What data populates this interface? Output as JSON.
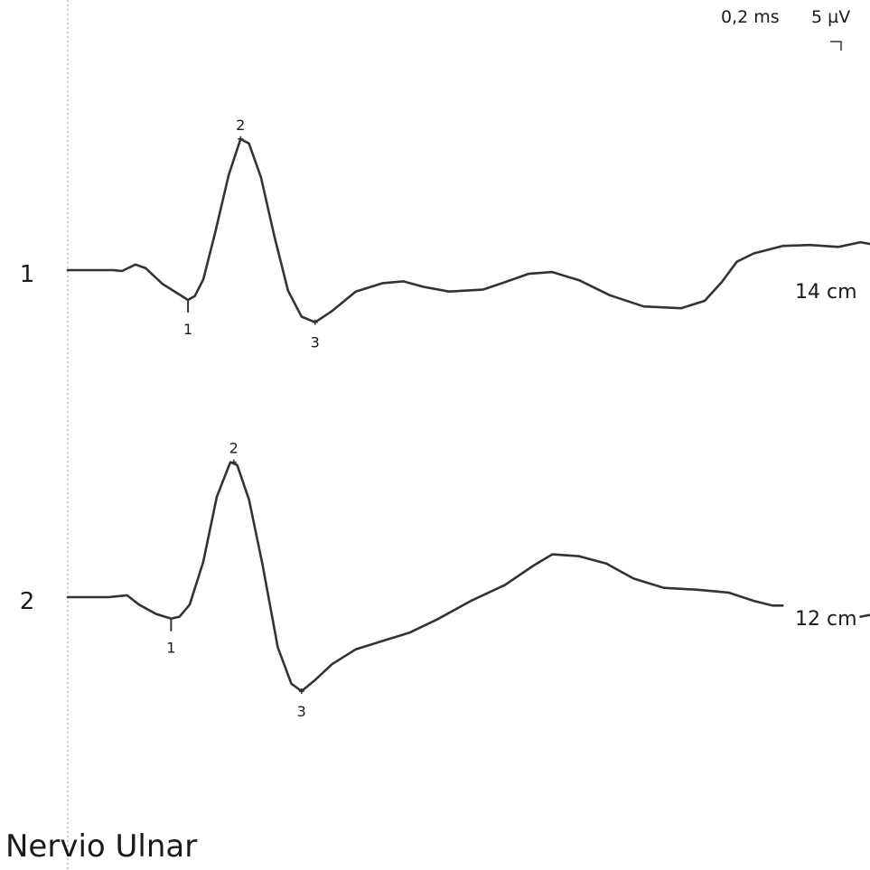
{
  "title": "Nervio Ulnar",
  "scale": {
    "time": "0,2 ms",
    "amplitude": "5 µV"
  },
  "chart_data": {
    "type": "line",
    "title": "Nervio Ulnar",
    "xlabel": "",
    "ylabel": "",
    "x_unit": "ms",
    "y_unit": "µV",
    "time_per_div": 0.2,
    "amp_per_div": 5,
    "xlim": [
      0,
      4.74
    ],
    "series": [
      {
        "name": "1",
        "distance_label": "14 cm",
        "points": [
          [
            0.0,
            0.0
          ],
          [
            0.27,
            0.0
          ],
          [
            0.32,
            -0.1
          ],
          [
            0.4,
            0.6
          ],
          [
            0.46,
            0.2
          ],
          [
            0.56,
            -1.5
          ],
          [
            0.71,
            -3.2
          ],
          [
            0.75,
            -2.8
          ],
          [
            0.8,
            -1.0
          ],
          [
            0.87,
            4.0
          ],
          [
            0.95,
            10.2
          ],
          [
            1.02,
            14.1
          ],
          [
            1.07,
            13.6
          ],
          [
            1.14,
            10.0
          ],
          [
            1.22,
            3.6
          ],
          [
            1.3,
            -2.2
          ],
          [
            1.38,
            -5.0
          ],
          [
            1.46,
            -5.6
          ],
          [
            1.56,
            -4.4
          ],
          [
            1.7,
            -2.3
          ],
          [
            1.86,
            -1.4
          ],
          [
            1.98,
            -1.2
          ],
          [
            2.1,
            -1.8
          ],
          [
            2.25,
            -2.3
          ],
          [
            2.45,
            -2.1
          ],
          [
            2.58,
            -1.3
          ],
          [
            2.72,
            -0.4
          ],
          [
            2.86,
            -0.2
          ],
          [
            3.02,
            -1.1
          ],
          [
            3.2,
            -2.7
          ],
          [
            3.4,
            -3.9
          ],
          [
            3.62,
            -4.1
          ],
          [
            3.76,
            -3.3
          ],
          [
            3.86,
            -1.3
          ],
          [
            3.95,
            0.9
          ],
          [
            4.05,
            1.8
          ],
          [
            4.22,
            2.6
          ],
          [
            4.38,
            2.7
          ],
          [
            4.55,
            2.5
          ],
          [
            4.68,
            3.0
          ],
          [
            4.74,
            2.8
          ]
        ],
        "markers": [
          {
            "label": "1",
            "t": 0.71,
            "amp": -3.2
          },
          {
            "label": "2",
            "t": 1.02,
            "amp": 14.1
          },
          {
            "label": "3",
            "t": 1.46,
            "amp": -5.6
          }
        ]
      },
      {
        "name": "2",
        "distance_label": "12 cm",
        "points": [
          [
            0.0,
            0.0
          ],
          [
            0.24,
            0.0
          ],
          [
            0.35,
            0.2
          ],
          [
            0.42,
            -0.8
          ],
          [
            0.52,
            -1.8
          ],
          [
            0.61,
            -2.3
          ],
          [
            0.66,
            -2.1
          ],
          [
            0.72,
            -0.8
          ],
          [
            0.8,
            3.8
          ],
          [
            0.88,
            10.8
          ],
          [
            0.96,
            14.5
          ],
          [
            1.0,
            14.2
          ],
          [
            1.07,
            10.5
          ],
          [
            1.15,
            3.5
          ],
          [
            1.24,
            -5.4
          ],
          [
            1.32,
            -9.3
          ],
          [
            1.38,
            -10.1
          ],
          [
            1.46,
            -8.9
          ],
          [
            1.56,
            -7.2
          ],
          [
            1.7,
            -5.6
          ],
          [
            1.86,
            -4.7
          ],
          [
            2.02,
            -3.8
          ],
          [
            2.18,
            -2.4
          ],
          [
            2.38,
            -0.4
          ],
          [
            2.58,
            1.3
          ],
          [
            2.75,
            3.4
          ],
          [
            2.86,
            4.6
          ],
          [
            3.02,
            4.4
          ],
          [
            3.18,
            3.6
          ],
          [
            3.34,
            2.0
          ],
          [
            3.52,
            1.0
          ],
          [
            3.72,
            0.8
          ],
          [
            3.9,
            0.5
          ],
          [
            4.05,
            -0.4
          ],
          [
            4.16,
            -0.9
          ],
          [
            4.22,
            -0.9
          ]
        ],
        "tail_points": [
          [
            4.68,
            -2.1
          ],
          [
            4.74,
            -1.9
          ]
        ],
        "markers": [
          {
            "label": "1",
            "t": 0.61,
            "amp": -2.3
          },
          {
            "label": "2",
            "t": 0.98,
            "amp": 14.5
          },
          {
            "label": "3",
            "t": 1.38,
            "amp": -10.1
          }
        ]
      }
    ]
  }
}
